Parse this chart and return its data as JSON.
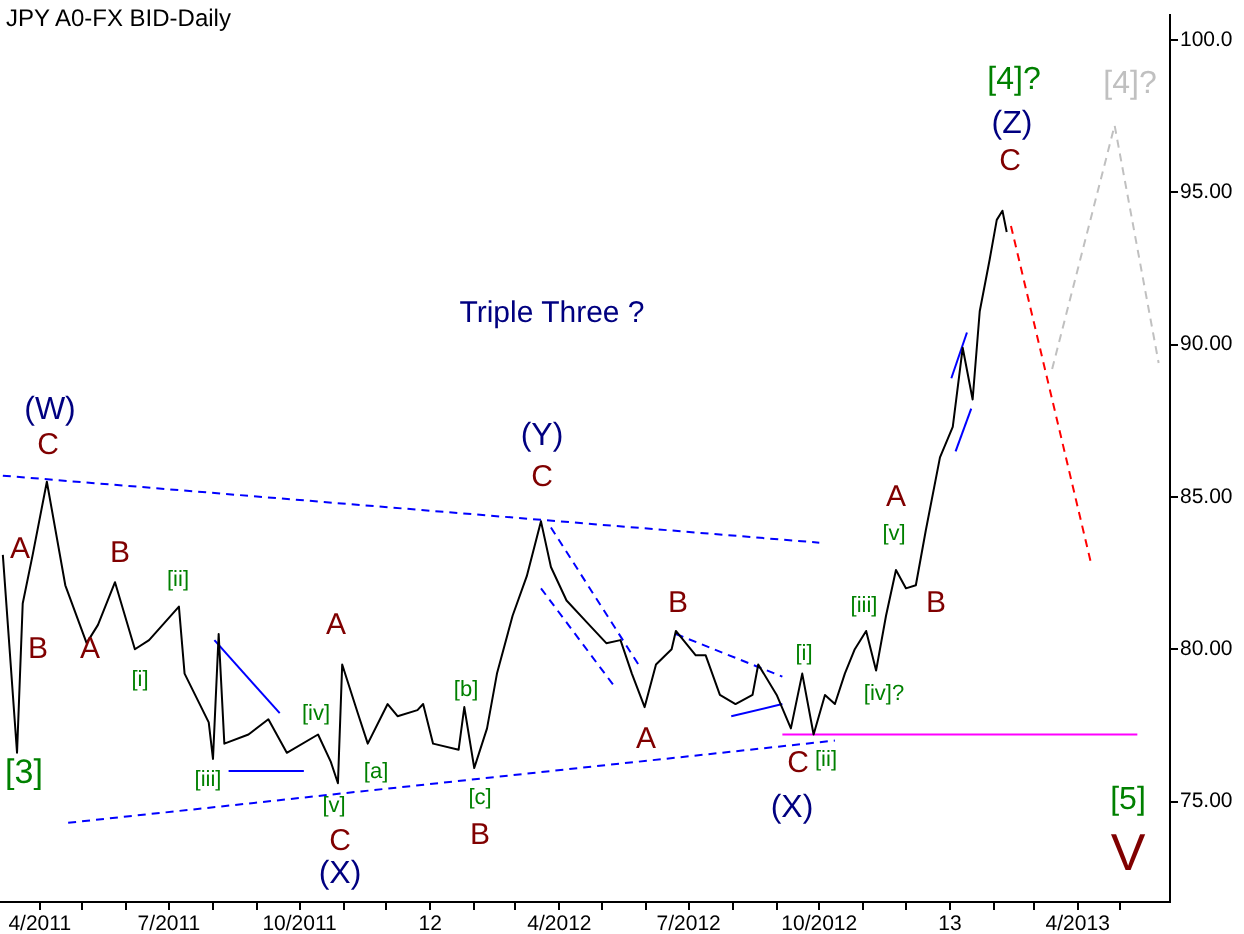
{
  "chart_data": {
    "type": "line",
    "title": "JPY A0-FX BID-Daily",
    "xlim": [
      "2011-03-04",
      "2013-06-05"
    ],
    "ylim": [
      71.7,
      100.84
    ],
    "xticks": [
      {
        "value": "2011-04",
        "label": "4/2011"
      },
      {
        "value": "2011-05",
        "label": null
      },
      {
        "value": "2011-06",
        "label": null
      },
      {
        "value": "2011-07",
        "label": "7/2011"
      },
      {
        "value": "2011-08",
        "label": null
      },
      {
        "value": "2011-09",
        "label": null
      },
      {
        "value": "2011-10",
        "label": "10/2011"
      },
      {
        "value": "2011-11",
        "label": null
      },
      {
        "value": "2011-12",
        "label": null
      },
      {
        "value": "2012-01",
        "label": "12"
      },
      {
        "value": "2012-02",
        "label": null
      },
      {
        "value": "2012-03",
        "label": null
      },
      {
        "value": "2012-04",
        "label": "4/2012"
      },
      {
        "value": "2012-05",
        "label": null
      },
      {
        "value": "2012-06",
        "label": null
      },
      {
        "value": "2012-07",
        "label": "7/2012"
      },
      {
        "value": "2012-08",
        "label": null
      },
      {
        "value": "2012-09",
        "label": null
      },
      {
        "value": "2012-10",
        "label": "10/2012"
      },
      {
        "value": "2012-11",
        "label": null
      },
      {
        "value": "2012-12",
        "label": null
      },
      {
        "value": "2013-01",
        "label": "13"
      },
      {
        "value": "2013-02",
        "label": null
      },
      {
        "value": "2013-03",
        "label": null
      },
      {
        "value": "2013-04",
        "label": "4/2013"
      },
      {
        "value": "2013-05",
        "label": null
      }
    ],
    "yticks": [
      {
        "value": 75,
        "label": "75.00"
      },
      {
        "value": 80,
        "label": "80.00"
      },
      {
        "value": 85,
        "label": "85.00"
      },
      {
        "value": 90,
        "label": "90.00"
      },
      {
        "value": 95,
        "label": "95.00"
      },
      {
        "value": 100,
        "label": "100.0"
      }
    ],
    "legend": false,
    "series": [
      {
        "color": "#000000",
        "x": [
          "2011-03-06",
          "2011-03-16",
          "2011-03-20",
          "2011-03-27",
          "2011-04-06",
          "2011-04-19",
          "2011-05-04",
          "2011-05-12",
          "2011-05-24",
          "2011-06-07",
          "2011-06-17",
          "2011-07-08",
          "2011-07-12",
          "2011-07-29",
          "2011-08-01",
          "2011-08-05",
          "2011-08-09",
          "2011-08-26",
          "2011-09-09",
          "2011-09-22",
          "2011-10-14",
          "2011-10-23",
          "2011-10-28",
          "2011-10-31",
          "2011-11-11",
          "2011-11-18",
          "2011-12-02",
          "2011-12-09",
          "2011-12-23",
          "2011-12-27",
          "2012-01-03",
          "2012-01-21",
          "2012-01-25",
          "2012-02-01",
          "2012-02-10",
          "2012-02-17",
          "2012-02-28",
          "2012-03-09",
          "2012-03-19",
          "2012-03-26",
          "2012-04-06",
          "2012-04-20",
          "2012-05-04",
          "2012-05-14",
          "2012-05-22",
          "2012-05-31",
          "2012-06-08",
          "2012-06-19",
          "2012-06-22",
          "2012-07-06",
          "2012-07-13",
          "2012-07-23",
          "2012-08-03",
          "2012-08-15",
          "2012-08-19",
          "2012-09-01",
          "2012-09-11",
          "2012-09-19",
          "2012-09-27",
          "2012-10-05",
          "2012-10-12",
          "2012-10-19",
          "2012-10-26",
          "2012-11-03",
          "2012-11-10",
          "2012-11-17",
          "2012-11-24",
          "2012-12-01",
          "2012-12-08",
          "2012-12-15",
          "2012-12-25",
          "2013-01-03",
          "2013-01-10",
          "2013-01-17",
          "2013-01-22",
          "2013-01-29",
          "2013-02-03",
          "2013-02-07",
          "2013-02-10"
        ],
        "values": [
          83.1,
          76.6,
          81.5,
          83.1,
          85.5,
          82.1,
          80.2,
          80.8,
          82.2,
          80.0,
          80.3,
          81.4,
          79.2,
          77.6,
          76.4,
          80.5,
          76.9,
          77.2,
          77.7,
          76.6,
          77.2,
          76.3,
          75.6,
          79.5,
          77.9,
          76.9,
          78.2,
          77.8,
          78.0,
          78.2,
          76.9,
          76.7,
          78.1,
          76.1,
          77.4,
          79.2,
          81.1,
          82.4,
          84.2,
          82.7,
          81.6,
          80.9,
          80.2,
          80.3,
          79.2,
          78.1,
          79.5,
          80.0,
          80.6,
          79.8,
          79.8,
          78.5,
          78.2,
          78.5,
          79.5,
          78.5,
          77.4,
          79.2,
          77.2,
          78.5,
          78.2,
          79.2,
          80.0,
          80.6,
          79.3,
          81.1,
          82.6,
          82.0,
          82.1,
          83.9,
          86.3,
          87.3,
          89.9,
          88.2,
          91.1,
          92.8,
          94.1,
          94.4,
          93.7
        ]
      },
      {
        "color": "#0000ff",
        "line_style": "dashed",
        "x": [
          "2011-03-06",
          "2012-10-01"
        ],
        "values": [
          85.7,
          83.5
        ]
      },
      {
        "color": "#0000ff",
        "line_style": "dashed",
        "x": [
          "2011-04-21",
          "2012-10-12"
        ],
        "values": [
          74.3,
          77.0
        ]
      },
      {
        "color": "#ff00ff",
        "x": [
          "2012-09-05",
          "2013-05-13"
        ],
        "values": [
          77.2,
          77.2
        ]
      },
      {
        "color": "#ff0000",
        "line_style": "dashed",
        "x": [
          "2013-02-13",
          "2013-04-10"
        ],
        "values": [
          93.9,
          82.9
        ]
      },
      {
        "color": "#c0c0c0",
        "line_style": "dashed",
        "x": [
          "2013-03-14",
          "2013-04-27",
          "2013-05-28"
        ],
        "values": [
          89.2,
          97.2,
          89.4
        ]
      },
      {
        "color": "#0000ff",
        "x": [
          "2011-08-02",
          "2011-09-17"
        ],
        "values": [
          80.3,
          77.9
        ]
      },
      {
        "color": "#0000ff",
        "x": [
          "2011-08-12",
          "2011-10-04"
        ],
        "values": [
          76.0,
          76.0
        ]
      },
      {
        "color": "#0000ff",
        "line_style": "dashed",
        "x": [
          "2012-03-26",
          "2012-05-28"
        ],
        "values": [
          84.0,
          79.4
        ]
      },
      {
        "color": "#0000ff",
        "line_style": "dashed",
        "x": [
          "2012-03-19",
          "2012-05-11"
        ],
        "values": [
          82.0,
          78.7
        ]
      },
      {
        "color": "#0000ff",
        "line_style": "dashed",
        "x": [
          "2012-06-22",
          "2012-09-05"
        ],
        "values": [
          80.5,
          79.1
        ]
      },
      {
        "color": "#0000ff",
        "x": [
          "2012-07-31",
          "2012-09-05"
        ],
        "values": [
          77.8,
          78.2
        ]
      },
      {
        "color": "#0000ff",
        "x": [
          "2013-01-02",
          "2013-01-13"
        ],
        "values": [
          88.9,
          90.4
        ]
      },
      {
        "color": "#0000ff",
        "x": [
          "2013-01-05",
          "2013-01-16"
        ],
        "values": [
          86.5,
          87.9
        ]
      }
    ],
    "annotations": [
      "(W)",
      "C",
      "A",
      "B",
      "[3]",
      "A",
      "B",
      "[i]",
      "[ii]",
      "[iii]",
      "[iv]",
      "A",
      "[v]",
      "C",
      "(X)",
      "[a]",
      "[b]",
      "[c]",
      "B",
      "(Y)",
      "C",
      "Triple Three ?",
      "A",
      "B",
      "[i]",
      "C",
      "[ii]",
      "(X)",
      "[iii]",
      "[iv]?",
      "A",
      "[v]",
      "B",
      "[4]?",
      "(Z)",
      "C",
      "[4]?",
      "[5]",
      "V"
    ]
  }
}
